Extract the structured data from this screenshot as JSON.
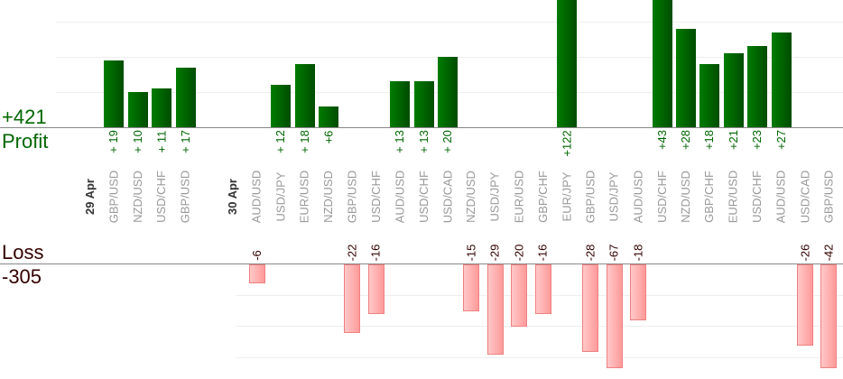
{
  "summary": {
    "profit_total": "+421",
    "profit_label": "Profit",
    "loss_label": "Loss",
    "loss_total": "-305"
  },
  "colors": {
    "profit": "#006600",
    "loss": "#330000",
    "pair": "#999999",
    "date": "#333333"
  },
  "chart_data": {
    "type": "bar",
    "title": "",
    "columns": [
      {
        "kind": "date",
        "label": "29 Apr"
      },
      {
        "kind": "trade",
        "pair": "GBP/USD",
        "value": 19,
        "text": "+ 19"
      },
      {
        "kind": "trade",
        "pair": "NZD/USD",
        "value": 10,
        "text": "+ 10"
      },
      {
        "kind": "trade",
        "pair": "USD/CHF",
        "value": 11,
        "text": "+ 11"
      },
      {
        "kind": "trade",
        "pair": "GBP/USD",
        "value": 17,
        "text": "+ 17"
      },
      {
        "kind": "empty"
      },
      {
        "kind": "date",
        "label": "30 Apr"
      },
      {
        "kind": "trade",
        "pair": "AUD/USD",
        "value": -6,
        "text": "-6"
      },
      {
        "kind": "trade",
        "pair": "USD/JPY",
        "value": 12,
        "text": "+ 12"
      },
      {
        "kind": "trade",
        "pair": "EUR/USD",
        "value": 18,
        "text": "+ 18"
      },
      {
        "kind": "trade",
        "pair": "NZD/USD",
        "value": 6,
        "text": "+6"
      },
      {
        "kind": "trade",
        "pair": "GBP/USD",
        "value": -22,
        "text": "-22"
      },
      {
        "kind": "trade",
        "pair": "USD/CHF",
        "value": -16,
        "text": "-16"
      },
      {
        "kind": "trade",
        "pair": "AUD/USD",
        "value": 13,
        "text": "+ 13"
      },
      {
        "kind": "trade",
        "pair": "USD/CHF",
        "value": 13,
        "text": "+ 13"
      },
      {
        "kind": "trade",
        "pair": "USD/CAD",
        "value": 20,
        "text": "+ 20"
      },
      {
        "kind": "trade",
        "pair": "NZD/USD",
        "value": -15,
        "text": "-15"
      },
      {
        "kind": "trade",
        "pair": "USD/JPY",
        "value": -29,
        "text": "-29"
      },
      {
        "kind": "trade",
        "pair": "EUR/USD",
        "value": -20,
        "text": "-20"
      },
      {
        "kind": "trade",
        "pair": "GBP/CHF",
        "value": -16,
        "text": "-16"
      },
      {
        "kind": "trade",
        "pair": "EUR/JPY",
        "value": 122,
        "text": "+122"
      },
      {
        "kind": "trade",
        "pair": "GBP/USD",
        "value": -28,
        "text": "-28"
      },
      {
        "kind": "trade",
        "pair": "USD/JPY",
        "value": -67,
        "text": "-67"
      },
      {
        "kind": "trade",
        "pair": "AUD/USD",
        "value": -18,
        "text": "-18"
      },
      {
        "kind": "trade",
        "pair": "USD/CHF",
        "value": 43,
        "text": "+43"
      },
      {
        "kind": "trade",
        "pair": "NZD/USD",
        "value": 28,
        "text": "+28"
      },
      {
        "kind": "trade",
        "pair": "GBP/CHF",
        "value": 18,
        "text": "+18"
      },
      {
        "kind": "trade",
        "pair": "EUR/USD",
        "value": 21,
        "text": "+21"
      },
      {
        "kind": "trade",
        "pair": "USD/CHF",
        "value": 23,
        "text": "+23"
      },
      {
        "kind": "trade",
        "pair": "AUD/USD",
        "value": 27,
        "text": "+27"
      },
      {
        "kind": "trade",
        "pair": "USD/CAD",
        "value": -26,
        "text": "-26"
      },
      {
        "kind": "trade",
        "pair": "GBP/USD",
        "value": -42,
        "text": "-42"
      }
    ],
    "profit_gridlines": [
      10,
      20,
      30
    ],
    "loss_gridlines": [
      -10,
      -20,
      -30
    ]
  }
}
